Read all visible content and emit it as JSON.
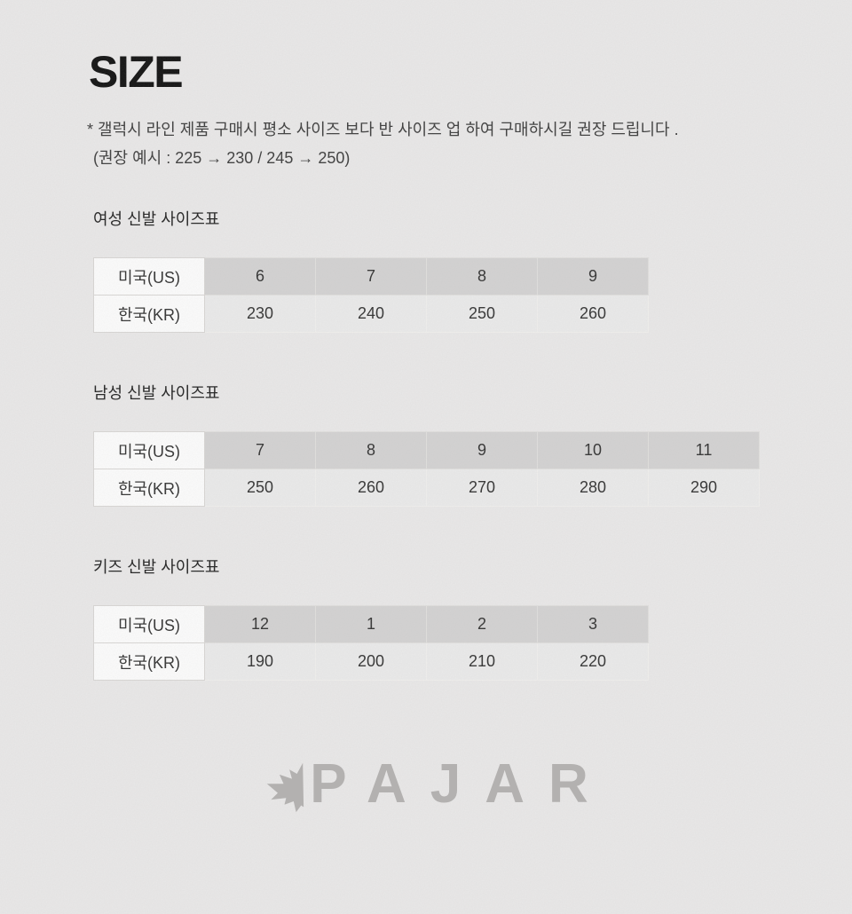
{
  "page": {
    "title": "SIZE",
    "note_line1": "* 갤럭시 라인 제품 구매시 평소 사이즈 보다 반 사이즈 업 하여 구매하시길 권장 드립니다 .",
    "note_line2": "(권장 예시 : 225 → 230 / 245 → 250)"
  },
  "tables": [
    {
      "title": "여성 신발 사이즈표",
      "row_labels": [
        "미국(US)",
        "한국(KR)"
      ],
      "us": [
        "6",
        "7",
        "8",
        "9"
      ],
      "kr": [
        "230",
        "240",
        "250",
        "260"
      ]
    },
    {
      "title": "남성 신발 사이즈표",
      "row_labels": [
        "미국(US)",
        "한국(KR)"
      ],
      "us": [
        "7",
        "8",
        "9",
        "10",
        "11"
      ],
      "kr": [
        "250",
        "260",
        "270",
        "280",
        "290"
      ]
    },
    {
      "title": "키즈 신발 사이즈표",
      "row_labels": [
        "미국(US)",
        "한국(KR)"
      ],
      "us": [
        "12",
        "1",
        "2",
        "3"
      ],
      "kr": [
        "190",
        "200",
        "210",
        "220"
      ]
    }
  ],
  "logo": {
    "text": "PAJAR",
    "icon": "maple-leaf-icon"
  },
  "colors": {
    "page_bg": "#e9e8e8",
    "us_row_bg": "#d3d2d2",
    "kr_row_bg": "#eaeaea",
    "label_cell_bg": "#fcfcfc",
    "cell_border": "#d8d6d4",
    "text_dark": "#222222",
    "note_text": "#3d3d3d",
    "logo_gray": "#b3b1b0"
  }
}
